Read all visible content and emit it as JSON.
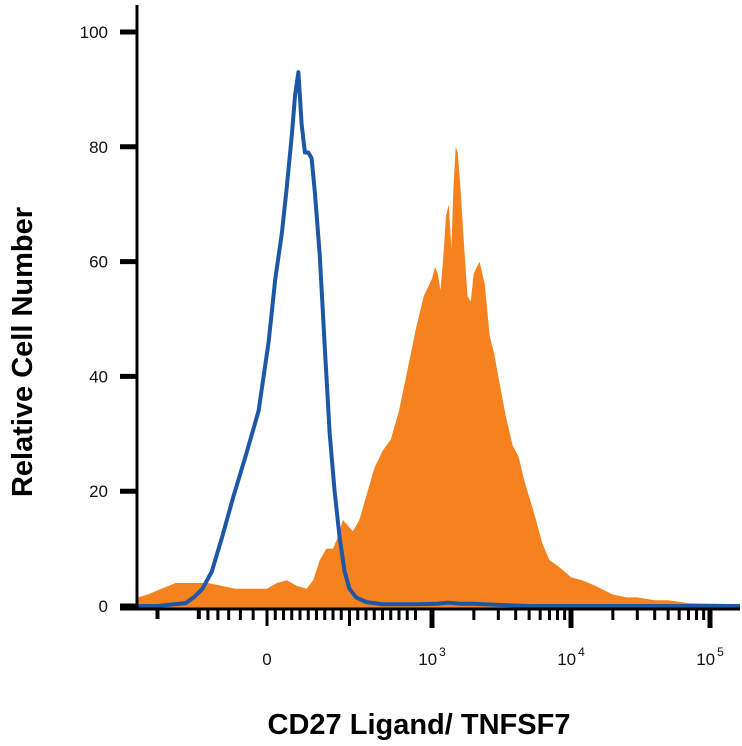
{
  "chart_data": {
    "type": "area",
    "title": "",
    "xlabel": "CD27 Ligand/ TNFSF7",
    "ylabel": "Relative Cell Number",
    "xscale": "biexponential",
    "ylim": [
      0,
      100
    ],
    "grid": false,
    "legend": "none",
    "y_ticks": [
      {
        "value": 0,
        "label": "0"
      },
      {
        "value": 20,
        "label": "20"
      },
      {
        "value": 40,
        "label": "40"
      },
      {
        "value": 60,
        "label": "60"
      },
      {
        "value": 80,
        "label": "80"
      },
      {
        "value": 100,
        "label": "100"
      }
    ],
    "x_ticks": [
      {
        "value": 0,
        "base": "0",
        "exp": ""
      },
      {
        "value": 1000,
        "base": "10",
        "exp": "3"
      },
      {
        "value": 10000,
        "base": "10",
        "exp": "4"
      },
      {
        "value": 100000,
        "base": "10",
        "exp": "5"
      }
    ],
    "series": [
      {
        "style": "filled",
        "color": "#f5821f",
        "points": [
          [
            -1500,
            1.5
          ],
          [
            -1000,
            1.5
          ],
          [
            -700,
            2
          ],
          [
            -450,
            4
          ],
          [
            -250,
            4
          ],
          [
            -120,
            3
          ],
          [
            0,
            3
          ],
          [
            60,
            4
          ],
          [
            120,
            4.5
          ],
          [
            180,
            3.5
          ],
          [
            240,
            3
          ],
          [
            280,
            4.5
          ],
          [
            320,
            8
          ],
          [
            360,
            10
          ],
          [
            400,
            10
          ],
          [
            430,
            12
          ],
          [
            460,
            15
          ],
          [
            490,
            14
          ],
          [
            520,
            13
          ],
          [
            560,
            15
          ],
          [
            600,
            19
          ],
          [
            650,
            24
          ],
          [
            700,
            27
          ],
          [
            750,
            29
          ],
          [
            800,
            34
          ],
          [
            850,
            41
          ],
          [
            900,
            48
          ],
          [
            950,
            54
          ],
          [
            1000,
            57
          ],
          [
            1050,
            59
          ],
          [
            1100,
            58
          ],
          [
            1150,
            55
          ],
          [
            1200,
            60
          ],
          [
            1260,
            68
          ],
          [
            1320,
            70
          ],
          [
            1380,
            62
          ],
          [
            1420,
            72
          ],
          [
            1480,
            80
          ],
          [
            1530,
            79
          ],
          [
            1600,
            73
          ],
          [
            1700,
            63
          ],
          [
            1800,
            54
          ],
          [
            1900,
            53
          ],
          [
            2000,
            58
          ],
          [
            2200,
            60
          ],
          [
            2400,
            56
          ],
          [
            2600,
            47
          ],
          [
            2800,
            44
          ],
          [
            3000,
            40
          ],
          [
            3400,
            33
          ],
          [
            3800,
            28
          ],
          [
            4200,
            26
          ],
          [
            4600,
            22
          ],
          [
            5000,
            19
          ],
          [
            5600,
            15
          ],
          [
            6200,
            11
          ],
          [
            7000,
            8
          ],
          [
            8000,
            7
          ],
          [
            9000,
            6
          ],
          [
            10000,
            5
          ],
          [
            12000,
            4.5
          ],
          [
            15000,
            3.5
          ],
          [
            20000,
            2
          ],
          [
            25000,
            1.5
          ],
          [
            30000,
            1.5
          ],
          [
            40000,
            1
          ],
          [
            50000,
            1
          ],
          [
            70000,
            0.5
          ],
          [
            200000,
            0.3
          ]
        ]
      },
      {
        "style": "outline",
        "color": "#1d58a7",
        "points": [
          [
            -1500,
            0
          ],
          [
            -600,
            0
          ],
          [
            -380,
            0.5
          ],
          [
            -330,
            1.5
          ],
          [
            -280,
            3
          ],
          [
            -230,
            6
          ],
          [
            -180,
            12
          ],
          [
            -130,
            19
          ],
          [
            -80,
            26
          ],
          [
            -30,
            34
          ],
          [
            10,
            46
          ],
          [
            50,
            57
          ],
          [
            90,
            65
          ],
          [
            120,
            73
          ],
          [
            150,
            82
          ],
          [
            170,
            89
          ],
          [
            190,
            93
          ],
          [
            210,
            84
          ],
          [
            230,
            79
          ],
          [
            250,
            79
          ],
          [
            270,
            78
          ],
          [
            290,
            72
          ],
          [
            320,
            61
          ],
          [
            350,
            45
          ],
          [
            380,
            30
          ],
          [
            410,
            20
          ],
          [
            440,
            12
          ],
          [
            470,
            6
          ],
          [
            500,
            3
          ],
          [
            540,
            1.5
          ],
          [
            600,
            0.7
          ],
          [
            700,
            0.3
          ],
          [
            900,
            0.3
          ],
          [
            1100,
            0.4
          ],
          [
            1300,
            0.6
          ],
          [
            1600,
            0.4
          ],
          [
            2000,
            0.4
          ],
          [
            3000,
            0.2
          ],
          [
            5000,
            0
          ],
          [
            10000,
            0
          ],
          [
            200000,
            0
          ]
        ]
      }
    ]
  }
}
